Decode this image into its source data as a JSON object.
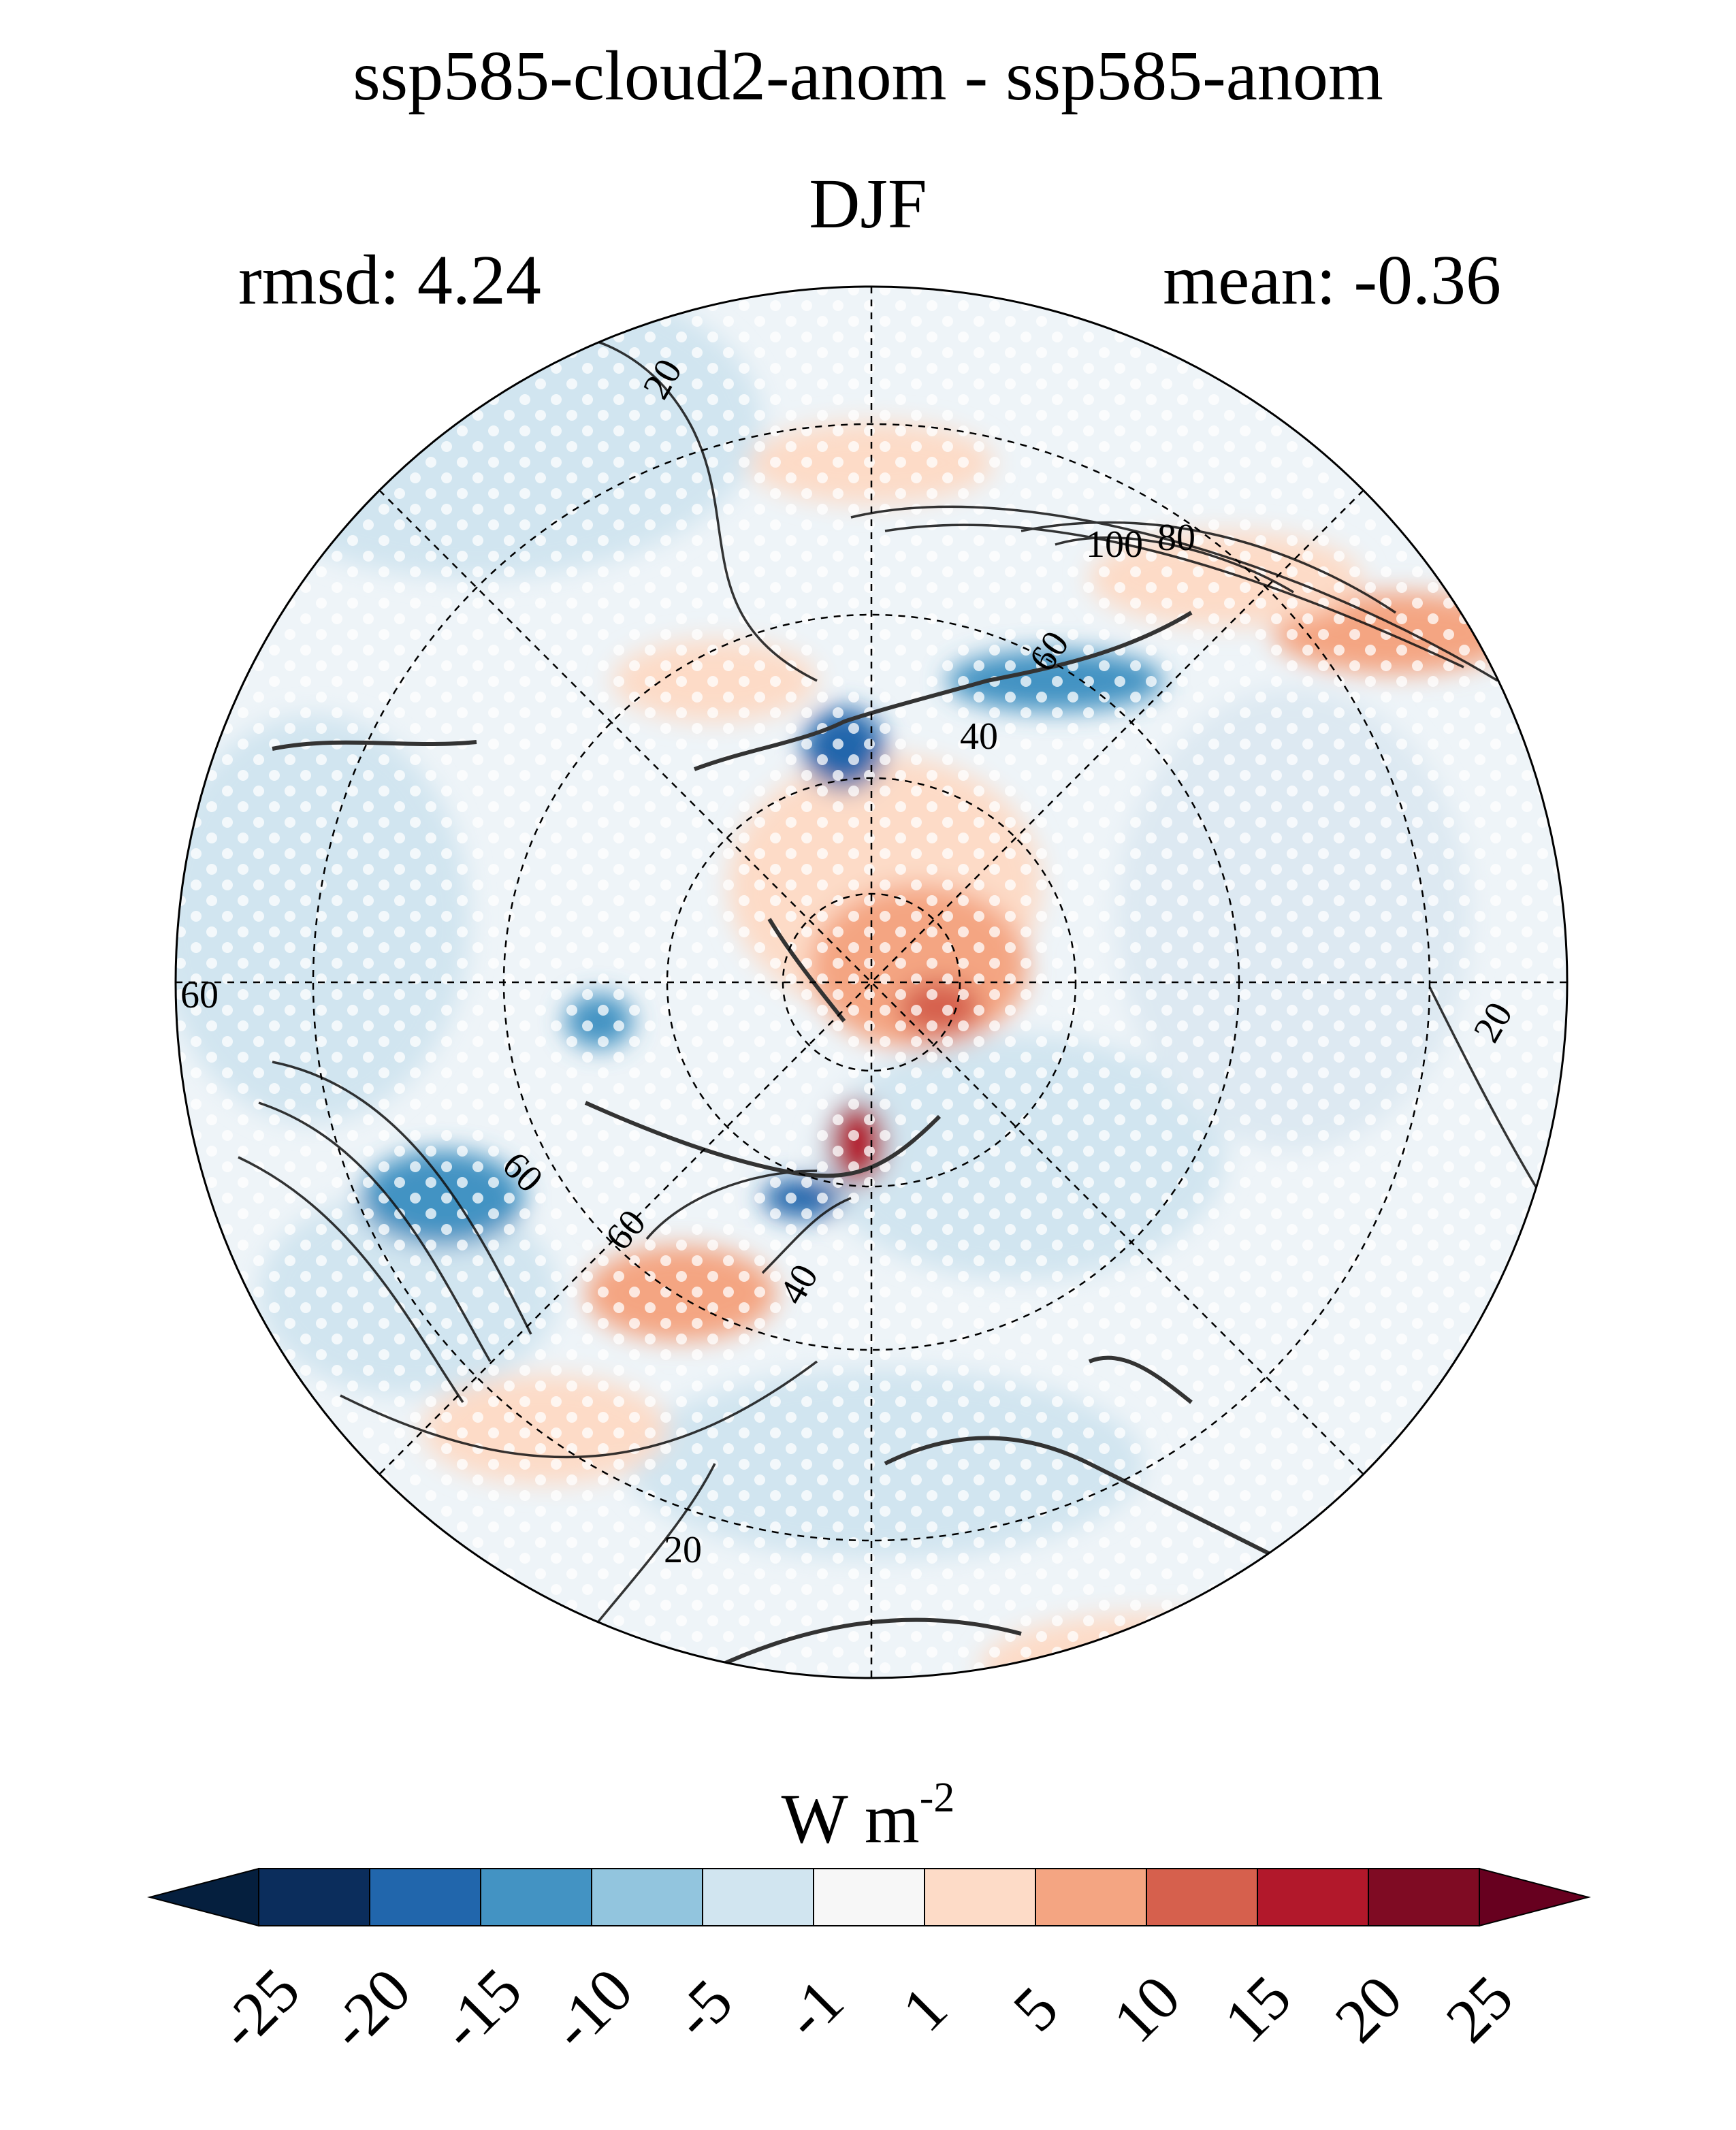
{
  "figure": {
    "title_line1": "ssp585-cloud2-anom - ssp585-anom",
    "title_line2": "DJF",
    "rmsd": "rmsd: 4.24",
    "mean": "mean: -0.36"
  },
  "map": {
    "projection": "north polar stereographic",
    "contour_labels": [
      "20",
      "100",
      "80",
      "60",
      "40",
      "60",
      "20",
      "60",
      "60",
      "40",
      "20"
    ],
    "stippling": true
  },
  "colorbar": {
    "units_base": "W m",
    "units_exp": "-2",
    "ticks": [
      "-25",
      "-20",
      "-15",
      "-10",
      "-5",
      "-1",
      "1",
      "5",
      "10",
      "15",
      "20",
      "25"
    ],
    "colors": [
      "#0b2d5c",
      "#2166ac",
      "#4393c3",
      "#92c5de",
      "#d1e5f0",
      "#f7f7f7",
      "#fddbc7",
      "#f4a582",
      "#d6604d",
      "#b2182b",
      "#7f0b23"
    ],
    "under_color": "#051f3e",
    "over_color": "#67001f"
  }
}
